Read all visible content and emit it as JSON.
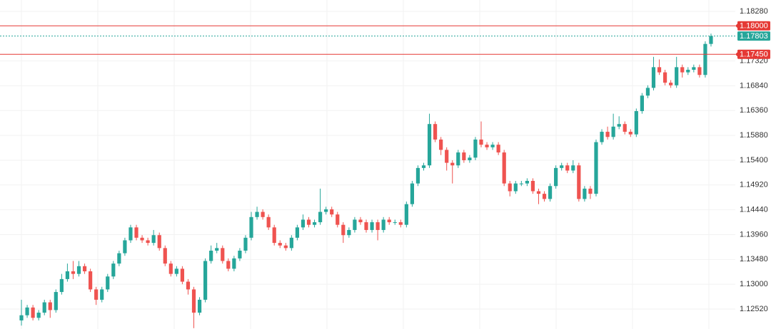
{
  "chart_data": {
    "type": "candlestick",
    "up_color": "#26a69a",
    "down_color": "#ef5350",
    "ylim": [
      1.12134,
      1.185
    ],
    "yticks": [
      {
        "value": 1.1828,
        "label": "1.18280"
      },
      {
        "value": 1.1732,
        "label": "1.17320"
      },
      {
        "value": 1.1684,
        "label": "1.16840"
      },
      {
        "value": 1.1636,
        "label": "1.16360"
      },
      {
        "value": 1.1588,
        "label": "1.15880"
      },
      {
        "value": 1.154,
        "label": "1.15400"
      },
      {
        "value": 1.1492,
        "label": "1.14920"
      },
      {
        "value": 1.1444,
        "label": "1.14440"
      },
      {
        "value": 1.1396,
        "label": "1.13960"
      },
      {
        "value": 1.1348,
        "label": "1.13480"
      },
      {
        "value": 1.13,
        "label": "1.13000"
      },
      {
        "value": 1.1252,
        "label": "1.12520"
      }
    ],
    "grid": true,
    "hlines": [
      {
        "value": 1.18,
        "label": "1.18000",
        "color": "#e53935"
      },
      {
        "value": 1.1745,
        "label": "1.17450",
        "color": "#e53935"
      }
    ],
    "last_price": {
      "value": 1.17803,
      "label": "1.17803",
      "color": "#26a69a"
    },
    "open": [
      1.123,
      1.124,
      1.1255,
      1.1235,
      1.1245,
      1.1265,
      1.125,
      1.1285,
      1.131,
      1.1325,
      1.132,
      1.1335,
      1.1325,
      1.129,
      1.127,
      1.129,
      1.1315,
      1.134,
      1.136,
      1.1385,
      1.141,
      1.139,
      1.1385,
      1.138,
      1.1395,
      1.137,
      1.134,
      1.132,
      1.133,
      1.1305,
      1.129,
      1.1245,
      1.127,
      1.1345,
      1.1365,
      1.137,
      1.1345,
      1.133,
      1.135,
      1.1365,
      1.139,
      1.143,
      1.144,
      1.143,
      1.141,
      1.138,
      1.1375,
      1.137,
      1.139,
      1.141,
      1.1425,
      1.1415,
      1.142,
      1.144,
      1.1445,
      1.1435,
      1.1415,
      1.1395,
      1.1405,
      1.1425,
      1.142,
      1.1405,
      1.142,
      1.1405,
      1.1425,
      1.142,
      1.142,
      1.1415,
      1.1455,
      1.1495,
      1.1525,
      1.153,
      1.161,
      1.158,
      1.156,
      1.1535,
      1.153,
      1.1555,
      1.154,
      1.1545,
      1.158,
      1.157,
      1.1565,
      1.157,
      1.1555,
      1.1495,
      1.148,
      1.1495,
      1.1495,
      1.15,
      1.148,
      1.1475,
      1.1465,
      1.149,
      1.1525,
      1.153,
      1.152,
      1.153,
      1.1465,
      1.1485,
      1.1475,
      1.1575,
      1.1595,
      1.1585,
      1.1605,
      1.161,
      1.1595,
      1.159,
      1.1635,
      1.1665,
      1.168,
      1.172,
      1.171,
      1.169,
      1.1685,
      1.172,
      1.171,
      1.1715,
      1.172,
      1.1705,
      1.1765
    ],
    "high": [
      1.127,
      1.126,
      1.126,
      1.125,
      1.127,
      1.127,
      1.129,
      1.132,
      1.134,
      1.1345,
      1.1345,
      1.134,
      1.133,
      1.1295,
      1.1295,
      1.132,
      1.1345,
      1.1365,
      1.139,
      1.1415,
      1.1415,
      1.1395,
      1.139,
      1.1405,
      1.14,
      1.1375,
      1.1345,
      1.1335,
      1.1335,
      1.131,
      1.1295,
      1.1275,
      1.135,
      1.1375,
      1.138,
      1.1375,
      1.135,
      1.1355,
      1.137,
      1.1395,
      1.144,
      1.145,
      1.1445,
      1.1435,
      1.1415,
      1.1385,
      1.138,
      1.1395,
      1.1415,
      1.1435,
      1.143,
      1.1425,
      1.1485,
      1.145,
      1.145,
      1.144,
      1.142,
      1.141,
      1.143,
      1.143,
      1.1425,
      1.1425,
      1.1425,
      1.143,
      1.143,
      1.1425,
      1.1425,
      1.146,
      1.15,
      1.153,
      1.1535,
      1.163,
      1.1615,
      1.1585,
      1.1565,
      1.154,
      1.156,
      1.156,
      1.155,
      1.1585,
      1.1615,
      1.1575,
      1.1575,
      1.1575,
      1.156,
      1.15,
      1.15,
      1.15,
      1.1505,
      1.1505,
      1.1485,
      1.148,
      1.1495,
      1.153,
      1.1535,
      1.1535,
      1.154,
      1.1535,
      1.149,
      1.149,
      1.158,
      1.16,
      1.1605,
      1.163,
      1.1625,
      1.1615,
      1.16,
      1.164,
      1.167,
      1.1685,
      1.174,
      1.1735,
      1.1715,
      1.1695,
      1.174,
      1.1725,
      1.172,
      1.1725,
      1.1725,
      1.177,
      1.1785
    ],
    "low": [
      1.122,
      1.1235,
      1.123,
      1.123,
      1.124,
      1.1235,
      1.1245,
      1.128,
      1.1305,
      1.131,
      1.1315,
      1.132,
      1.1285,
      1.126,
      1.1265,
      1.1285,
      1.131,
      1.1335,
      1.1355,
      1.138,
      1.1385,
      1.138,
      1.1375,
      1.1375,
      1.1365,
      1.1335,
      1.1315,
      1.1315,
      1.13,
      1.128,
      1.1215,
      1.124,
      1.1265,
      1.134,
      1.136,
      1.134,
      1.1325,
      1.1325,
      1.1345,
      1.136,
      1.1385,
      1.1425,
      1.1425,
      1.1405,
      1.1375,
      1.137,
      1.1365,
      1.1365,
      1.1385,
      1.1405,
      1.141,
      1.141,
      1.1415,
      1.1435,
      1.143,
      1.141,
      1.138,
      1.139,
      1.14,
      1.1415,
      1.14,
      1.14,
      1.1385,
      1.14,
      1.1415,
      1.1415,
      1.141,
      1.141,
      1.145,
      1.149,
      1.152,
      1.1525,
      1.1575,
      1.155,
      1.152,
      1.1495,
      1.1525,
      1.1535,
      1.1535,
      1.154,
      1.1565,
      1.156,
      1.156,
      1.155,
      1.149,
      1.147,
      1.1475,
      1.149,
      1.149,
      1.1475,
      1.1455,
      1.146,
      1.146,
      1.1485,
      1.152,
      1.1515,
      1.1515,
      1.146,
      1.146,
      1.1465,
      1.147,
      1.157,
      1.158,
      1.158,
      1.16,
      1.159,
      1.1585,
      1.1585,
      1.163,
      1.166,
      1.1675,
      1.1705,
      1.1685,
      1.168,
      1.168,
      1.17,
      1.1705,
      1.171,
      1.17,
      1.17,
      1.176
    ],
    "close": [
      1.124,
      1.1255,
      1.1235,
      1.1245,
      1.1265,
      1.125,
      1.1285,
      1.131,
      1.1325,
      1.132,
      1.1335,
      1.1325,
      1.129,
      1.127,
      1.129,
      1.1315,
      1.134,
      1.136,
      1.1385,
      1.141,
      1.139,
      1.1385,
      1.138,
      1.1395,
      1.137,
      1.134,
      1.132,
      1.133,
      1.1305,
      1.129,
      1.1245,
      1.127,
      1.1345,
      1.1365,
      1.137,
      1.1345,
      1.133,
      1.135,
      1.1365,
      1.139,
      1.143,
      1.144,
      1.143,
      1.141,
      1.138,
      1.1375,
      1.137,
      1.139,
      1.141,
      1.1425,
      1.1415,
      1.142,
      1.144,
      1.1445,
      1.1435,
      1.1415,
      1.1395,
      1.1405,
      1.1425,
      1.142,
      1.1405,
      1.142,
      1.1405,
      1.1425,
      1.142,
      1.142,
      1.1415,
      1.1455,
      1.1495,
      1.1525,
      1.153,
      1.161,
      1.158,
      1.156,
      1.1535,
      1.153,
      1.1555,
      1.154,
      1.1545,
      1.158,
      1.157,
      1.1565,
      1.157,
      1.1555,
      1.1495,
      1.148,
      1.1495,
      1.1495,
      1.15,
      1.148,
      1.1475,
      1.1465,
      1.149,
      1.1525,
      1.153,
      1.152,
      1.153,
      1.1465,
      1.1485,
      1.1475,
      1.1575,
      1.1595,
      1.1585,
      1.1605,
      1.161,
      1.1595,
      1.159,
      1.1635,
      1.1665,
      1.168,
      1.172,
      1.171,
      1.169,
      1.1685,
      1.172,
      1.171,
      1.1715,
      1.172,
      1.1705,
      1.1765,
      1.17803
    ]
  }
}
